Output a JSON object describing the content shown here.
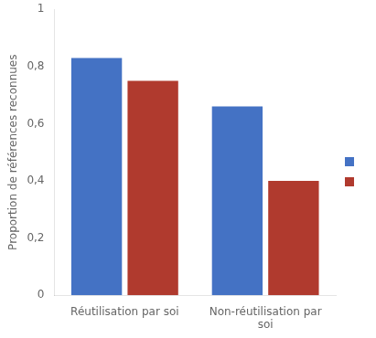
{
  "chart_data": {
    "type": "bar",
    "categories": [
      "Réutilisation par soi",
      "Non-réutilisation par\nsoi"
    ],
    "series": [
      {
        "color": "#4472C4",
        "values": [
          0.83,
          0.66
        ]
      },
      {
        "color": "#B03A2E",
        "values": [
          0.75,
          0.4
        ]
      }
    ],
    "ylabel": "Proportion de références reconnues",
    "ylim": [
      0,
      1
    ],
    "yticks": [
      0,
      {
        "value": 0.2,
        "label": "0,2"
      },
      {
        "value": 0.4,
        "label": "0,4"
      },
      {
        "value": 0.6,
        "label": "0,6"
      },
      {
        "value": 0.8,
        "label": "0,8"
      },
      1
    ],
    "grid": false,
    "legend": "right"
  }
}
